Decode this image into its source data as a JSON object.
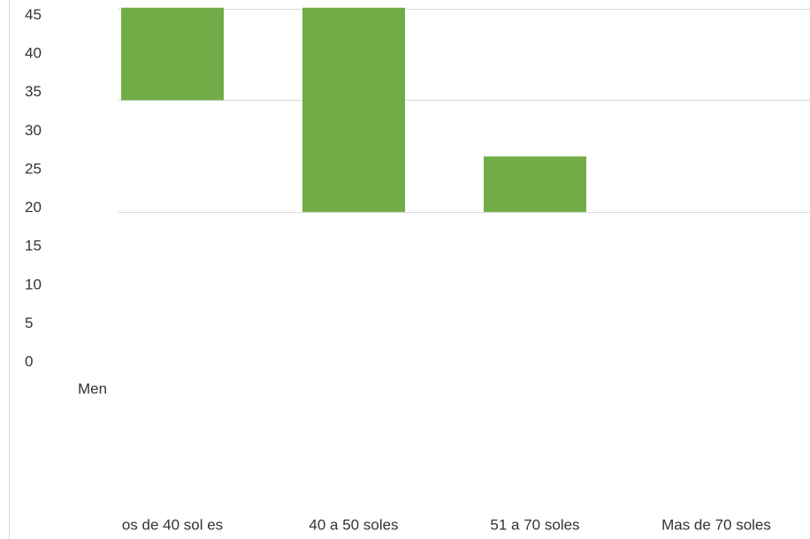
{
  "chart_data": {
    "type": "bar",
    "categories": [
      "os de 40 sol es",
      "40 a 50 soles",
      "51 a 70 soles",
      "Mas de 70 soles"
    ],
    "annotations": [
      "Men"
    ],
    "starts": [
      34,
      19.5,
      19.5,
      null
    ],
    "values": [
      46,
      46,
      26.7,
      null
    ],
    "color": "#70ad47",
    "ylim": [
      0,
      47
    ],
    "yticks": [
      0,
      5,
      10,
      15,
      20,
      25,
      30,
      35,
      40,
      45
    ]
  }
}
